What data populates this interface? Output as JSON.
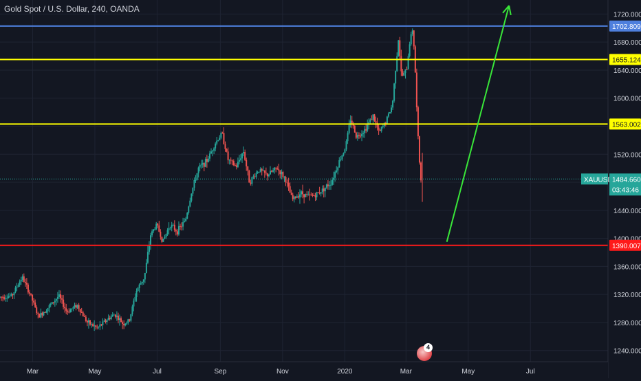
{
  "header": {
    "title": "Gold Spot / U.S. Dollar, 240, OANDA"
  },
  "emoji_badge": {
    "count": "4"
  },
  "colors": {
    "background": "#131722",
    "grid": "#1f2433",
    "axis_text": "#d1d4dc",
    "candle_up": "#26a69a",
    "candle_down": "#ef5350",
    "line_blue": "#4e7fdd",
    "line_yellow": "#ffff00",
    "line_red": "#ff1a1a",
    "current_price": "#26a69a",
    "arrow": "#39e639"
  },
  "chart_data": {
    "type": "candlestick",
    "symbol": "XAUUSD",
    "y_ticks": [
      1720,
      1680,
      1640,
      1600,
      1560,
      1520,
      1480,
      1440,
      1400,
      1360,
      1320,
      1280,
      1240
    ],
    "y_tick_labels": [
      "1720.000",
      "1680.000",
      "1640.000",
      "1600.000",
      "1560.000",
      "1520.000",
      "1480.000",
      "1440.000",
      "1400.000",
      "1360.000",
      "1320.000",
      "1280.000",
      "1240.000"
    ],
    "x_ticks": [
      "Mar",
      "May",
      "Jul",
      "Sep",
      "Nov",
      "2020",
      "Mar",
      "May",
      "Jul"
    ],
    "x_tick_dates": [
      "2019-03-01",
      "2019-05-01",
      "2019-07-01",
      "2019-09-01",
      "2019-11-01",
      "2020-01-01",
      "2020-03-01",
      "2020-05-01",
      "2020-07-01"
    ],
    "ylim": [
      1224,
      1740
    ],
    "xlim": [
      "2019-01-28",
      "2020-09-15"
    ],
    "horizontal_lines": [
      {
        "value": 1702.809,
        "label": "1702.809",
        "color": "#4e7fdd"
      },
      {
        "value": 1655.124,
        "label": "1655.124",
        "color": "#ffff00"
      },
      {
        "value": 1563.002,
        "label": "1563.002",
        "color": "#ffff00"
      },
      {
        "value": 1390.007,
        "label": "1390.007",
        "color": "#ff1a1a"
      }
    ],
    "current_price": {
      "value": 1484.66,
      "label": "1484.660",
      "symbol": "XAUUSD",
      "countdown": "03:43:46"
    },
    "arrow": {
      "from": {
        "date": "2020-04-10",
        "price": 1395
      },
      "to": {
        "date": "2020-06-10",
        "price": 1732
      }
    },
    "price_path": [
      [
        "2019-01-28",
        1316
      ],
      [
        "2019-02-10",
        1318
      ],
      [
        "2019-02-20",
        1345
      ],
      [
        "2019-02-28",
        1320
      ],
      [
        "2019-03-08",
        1288
      ],
      [
        "2019-03-20",
        1305
      ],
      [
        "2019-03-28",
        1318
      ],
      [
        "2019-04-05",
        1295
      ],
      [
        "2019-04-15",
        1305
      ],
      [
        "2019-04-25",
        1280
      ],
      [
        "2019-05-05",
        1272
      ],
      [
        "2019-05-15",
        1285
      ],
      [
        "2019-05-22",
        1292
      ],
      [
        "2019-05-30",
        1278
      ],
      [
        "2019-06-05",
        1282
      ],
      [
        "2019-06-12",
        1325
      ],
      [
        "2019-06-20",
        1345
      ],
      [
        "2019-06-26",
        1405
      ],
      [
        "2019-07-02",
        1420
      ],
      [
        "2019-07-08",
        1395
      ],
      [
        "2019-07-15",
        1420
      ],
      [
        "2019-07-22",
        1410
      ],
      [
        "2019-07-30",
        1425
      ],
      [
        "2019-08-05",
        1465
      ],
      [
        "2019-08-12",
        1500
      ],
      [
        "2019-08-20",
        1510
      ],
      [
        "2019-08-28",
        1535
      ],
      [
        "2019-09-04",
        1550
      ],
      [
        "2019-09-10",
        1512
      ],
      [
        "2019-09-18",
        1502
      ],
      [
        "2019-09-25",
        1525
      ],
      [
        "2019-10-01",
        1480
      ],
      [
        "2019-10-10",
        1498
      ],
      [
        "2019-10-18",
        1490
      ],
      [
        "2019-10-28",
        1500
      ],
      [
        "2019-11-05",
        1485
      ],
      [
        "2019-11-12",
        1455
      ],
      [
        "2019-11-20",
        1465
      ],
      [
        "2019-11-28",
        1460
      ],
      [
        "2019-12-05",
        1462
      ],
      [
        "2019-12-12",
        1470
      ],
      [
        "2019-12-20",
        1480
      ],
      [
        "2019-12-28",
        1510
      ],
      [
        "2020-01-03",
        1530
      ],
      [
        "2020-01-08",
        1570
      ],
      [
        "2020-01-14",
        1545
      ],
      [
        "2020-01-22",
        1555
      ],
      [
        "2020-01-30",
        1575
      ],
      [
        "2020-02-05",
        1550
      ],
      [
        "2020-02-12",
        1568
      ],
      [
        "2020-02-18",
        1590
      ],
      [
        "2020-02-21",
        1640
      ],
      [
        "2020-02-24",
        1685
      ],
      [
        "2020-02-27",
        1630
      ],
      [
        "2020-03-03",
        1640
      ],
      [
        "2020-03-06",
        1680
      ],
      [
        "2020-03-09",
        1700
      ],
      [
        "2020-03-11",
        1655
      ],
      [
        "2020-03-13",
        1580
      ],
      [
        "2020-03-15",
        1520
      ],
      [
        "2020-03-17",
        1484.66
      ]
    ]
  }
}
